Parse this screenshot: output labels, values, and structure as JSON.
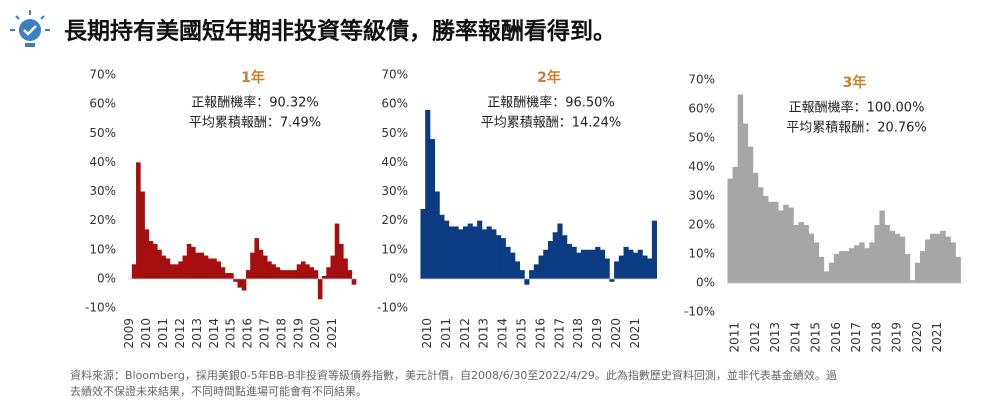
{
  "title": "長期持有美國短年期非投資等級債，勝率報酬看得到。",
  "footnote": [
    "資料來源：Bloomberg，採用美銀0-5年BB-B非投資等級債券指數，美元計價，自2008/6/30至2022/4/29。此為指數歷史資料回測，並非代表基金績效。過",
    "去績效不保證未來結果，不同時間點進場可能會有不同結果。"
  ],
  "chart_data": [
    {
      "type": "bar",
      "title": "1年",
      "annotations": [
        "正報酬機率：90.32%",
        "平均累積報酬：7.49%"
      ],
      "color": "#a50f0f",
      "x": [
        2009.25,
        2009.5,
        2009.75,
        2010,
        2010.25,
        2010.5,
        2010.75,
        2011,
        2011.25,
        2011.5,
        2011.75,
        2012,
        2012.25,
        2012.5,
        2012.75,
        2013,
        2013.25,
        2013.5,
        2013.75,
        2014,
        2014.25,
        2014.5,
        2014.75,
        2015,
        2015.25,
        2015.5,
        2015.75,
        2016,
        2016.25,
        2016.5,
        2016.75,
        2017,
        2017.25,
        2017.5,
        2017.75,
        2018,
        2018.25,
        2018.5,
        2018.75,
        2019,
        2019.25,
        2019.5,
        2019.75,
        2020,
        2020.25,
        2020.5,
        2020.75,
        2021,
        2021.25,
        2021.5,
        2021.75,
        2022,
        2022.25
      ],
      "values": [
        5,
        40,
        30,
        17,
        13,
        12,
        10,
        8,
        7,
        5,
        5,
        6,
        8,
        12,
        11,
        9,
        9,
        8,
        7,
        7,
        6,
        4,
        2,
        2,
        -1,
        -3,
        -4,
        3,
        9,
        14,
        10,
        8,
        6,
        5,
        4,
        3,
        3,
        3,
        3,
        5,
        6,
        5,
        4,
        3,
        -7,
        1,
        4,
        8,
        19,
        12,
        7,
        3,
        -2
      ],
      "xlim": [
        2008.9,
        2022.5
      ],
      "xticks": [
        2009,
        2010,
        2011,
        2012,
        2013,
        2014,
        2015,
        2016,
        2017,
        2018,
        2019,
        2020,
        2021
      ],
      "ylim": [
        -10,
        70
      ],
      "yticks": [
        {
          "value": -10,
          "label": "-10%"
        },
        {
          "value": 0,
          "label": "0%"
        },
        {
          "value": 10,
          "label": "10%"
        },
        {
          "value": 20,
          "label": "20%"
        },
        {
          "value": 30,
          "label": "30%"
        },
        {
          "value": 40,
          "label": "40%"
        },
        {
          "value": 50,
          "label": "50%"
        },
        {
          "value": 60,
          "label": "60%"
        },
        {
          "value": 70,
          "label": "70%"
        }
      ]
    },
    {
      "type": "bar",
      "title": "2年",
      "annotations": [
        "正報酬機率：96.50%",
        "平均累積報酬：14.24%"
      ],
      "color": "#0c3b82",
      "x": [
        2009.75,
        2010,
        2010.25,
        2010.5,
        2010.75,
        2011,
        2011.25,
        2011.5,
        2011.75,
        2012,
        2012.25,
        2012.5,
        2012.75,
        2013,
        2013.25,
        2013.5,
        2013.75,
        2014,
        2014.25,
        2014.5,
        2014.75,
        2015,
        2015.25,
        2015.5,
        2015.75,
        2016,
        2016.25,
        2016.5,
        2016.75,
        2017,
        2017.25,
        2017.5,
        2017.75,
        2018,
        2018.25,
        2018.5,
        2018.75,
        2019,
        2019.25,
        2019.5,
        2019.75,
        2020,
        2020.25,
        2020.5,
        2020.75,
        2021,
        2021.25,
        2021.5,
        2021.75,
        2022
      ],
      "values": [
        24,
        58,
        48,
        30,
        22,
        20,
        18,
        18,
        17,
        18,
        19,
        18,
        20,
        17,
        18,
        17,
        15,
        14,
        11,
        9,
        6,
        3,
        -2,
        3,
        5,
        8,
        10,
        13,
        16,
        19,
        15,
        12,
        11,
        9,
        10,
        10,
        10,
        11,
        10,
        7,
        -1,
        6,
        8,
        11,
        10,
        9,
        10,
        8,
        7,
        20
      ],
      "xlim": [
        2009.6,
        2022.2
      ],
      "xticks": [
        2010,
        2011,
        2012,
        2013,
        2014,
        2015,
        2016,
        2017,
        2018,
        2019,
        2020,
        2021
      ],
      "ylim": [
        -10,
        70
      ],
      "yticks": [
        {
          "value": -10,
          "label": "-10%"
        },
        {
          "value": 0,
          "label": "0%"
        },
        {
          "value": 10,
          "label": "10%"
        },
        {
          "value": 20,
          "label": "20%"
        },
        {
          "value": 30,
          "label": "30%"
        },
        {
          "value": 40,
          "label": "40%"
        },
        {
          "value": 50,
          "label": "50%"
        },
        {
          "value": 60,
          "label": "60%"
        },
        {
          "value": 70,
          "label": "70%"
        }
      ]
    },
    {
      "type": "bar",
      "title": "3年",
      "annotations": [
        "正報酬機率：100.00%",
        "平均累積報酬：20.76%"
      ],
      "color": "#a6a6a6",
      "x": [
        2010.75,
        2011,
        2011.25,
        2011.5,
        2011.75,
        2012,
        2012.25,
        2012.5,
        2012.75,
        2013,
        2013.25,
        2013.5,
        2013.75,
        2014,
        2014.25,
        2014.5,
        2014.75,
        2015,
        2015.25,
        2015.5,
        2015.75,
        2016,
        2016.25,
        2016.5,
        2016.75,
        2017,
        2017.25,
        2017.5,
        2017.75,
        2018,
        2018.25,
        2018.5,
        2018.75,
        2019,
        2019.25,
        2019.5,
        2019.75,
        2020,
        2020.25,
        2020.5,
        2020.75,
        2021,
        2021.25,
        2021.5,
        2021.75,
        2022
      ],
      "values": [
        36,
        40,
        65,
        55,
        47,
        38,
        33,
        30,
        28,
        28,
        25,
        27,
        26,
        20,
        21,
        20,
        17,
        14,
        9,
        4,
        7,
        10,
        11,
        11,
        12,
        13,
        14,
        12,
        14,
        20,
        25,
        20,
        18,
        17,
        16,
        10,
        1,
        7,
        11,
        15,
        17,
        17,
        18,
        16,
        14,
        9
      ],
      "xlim": [
        2010.6,
        2022.2
      ],
      "xticks": [
        2011,
        2012,
        2013,
        2014,
        2015,
        2016,
        2017,
        2018,
        2019,
        2020,
        2021
      ],
      "ylim": [
        -10,
        70
      ],
      "yticks": [
        {
          "value": -10,
          "label": "-10%"
        },
        {
          "value": 0,
          "label": "0%"
        },
        {
          "value": 10,
          "label": "10%"
        },
        {
          "value": 20,
          "label": "20%"
        },
        {
          "value": 30,
          "label": "30%"
        },
        {
          "value": 40,
          "label": "40%"
        },
        {
          "value": 50,
          "label": "50%"
        },
        {
          "value": 60,
          "label": "60%"
        },
        {
          "value": 70,
          "label": "70%"
        }
      ]
    }
  ]
}
